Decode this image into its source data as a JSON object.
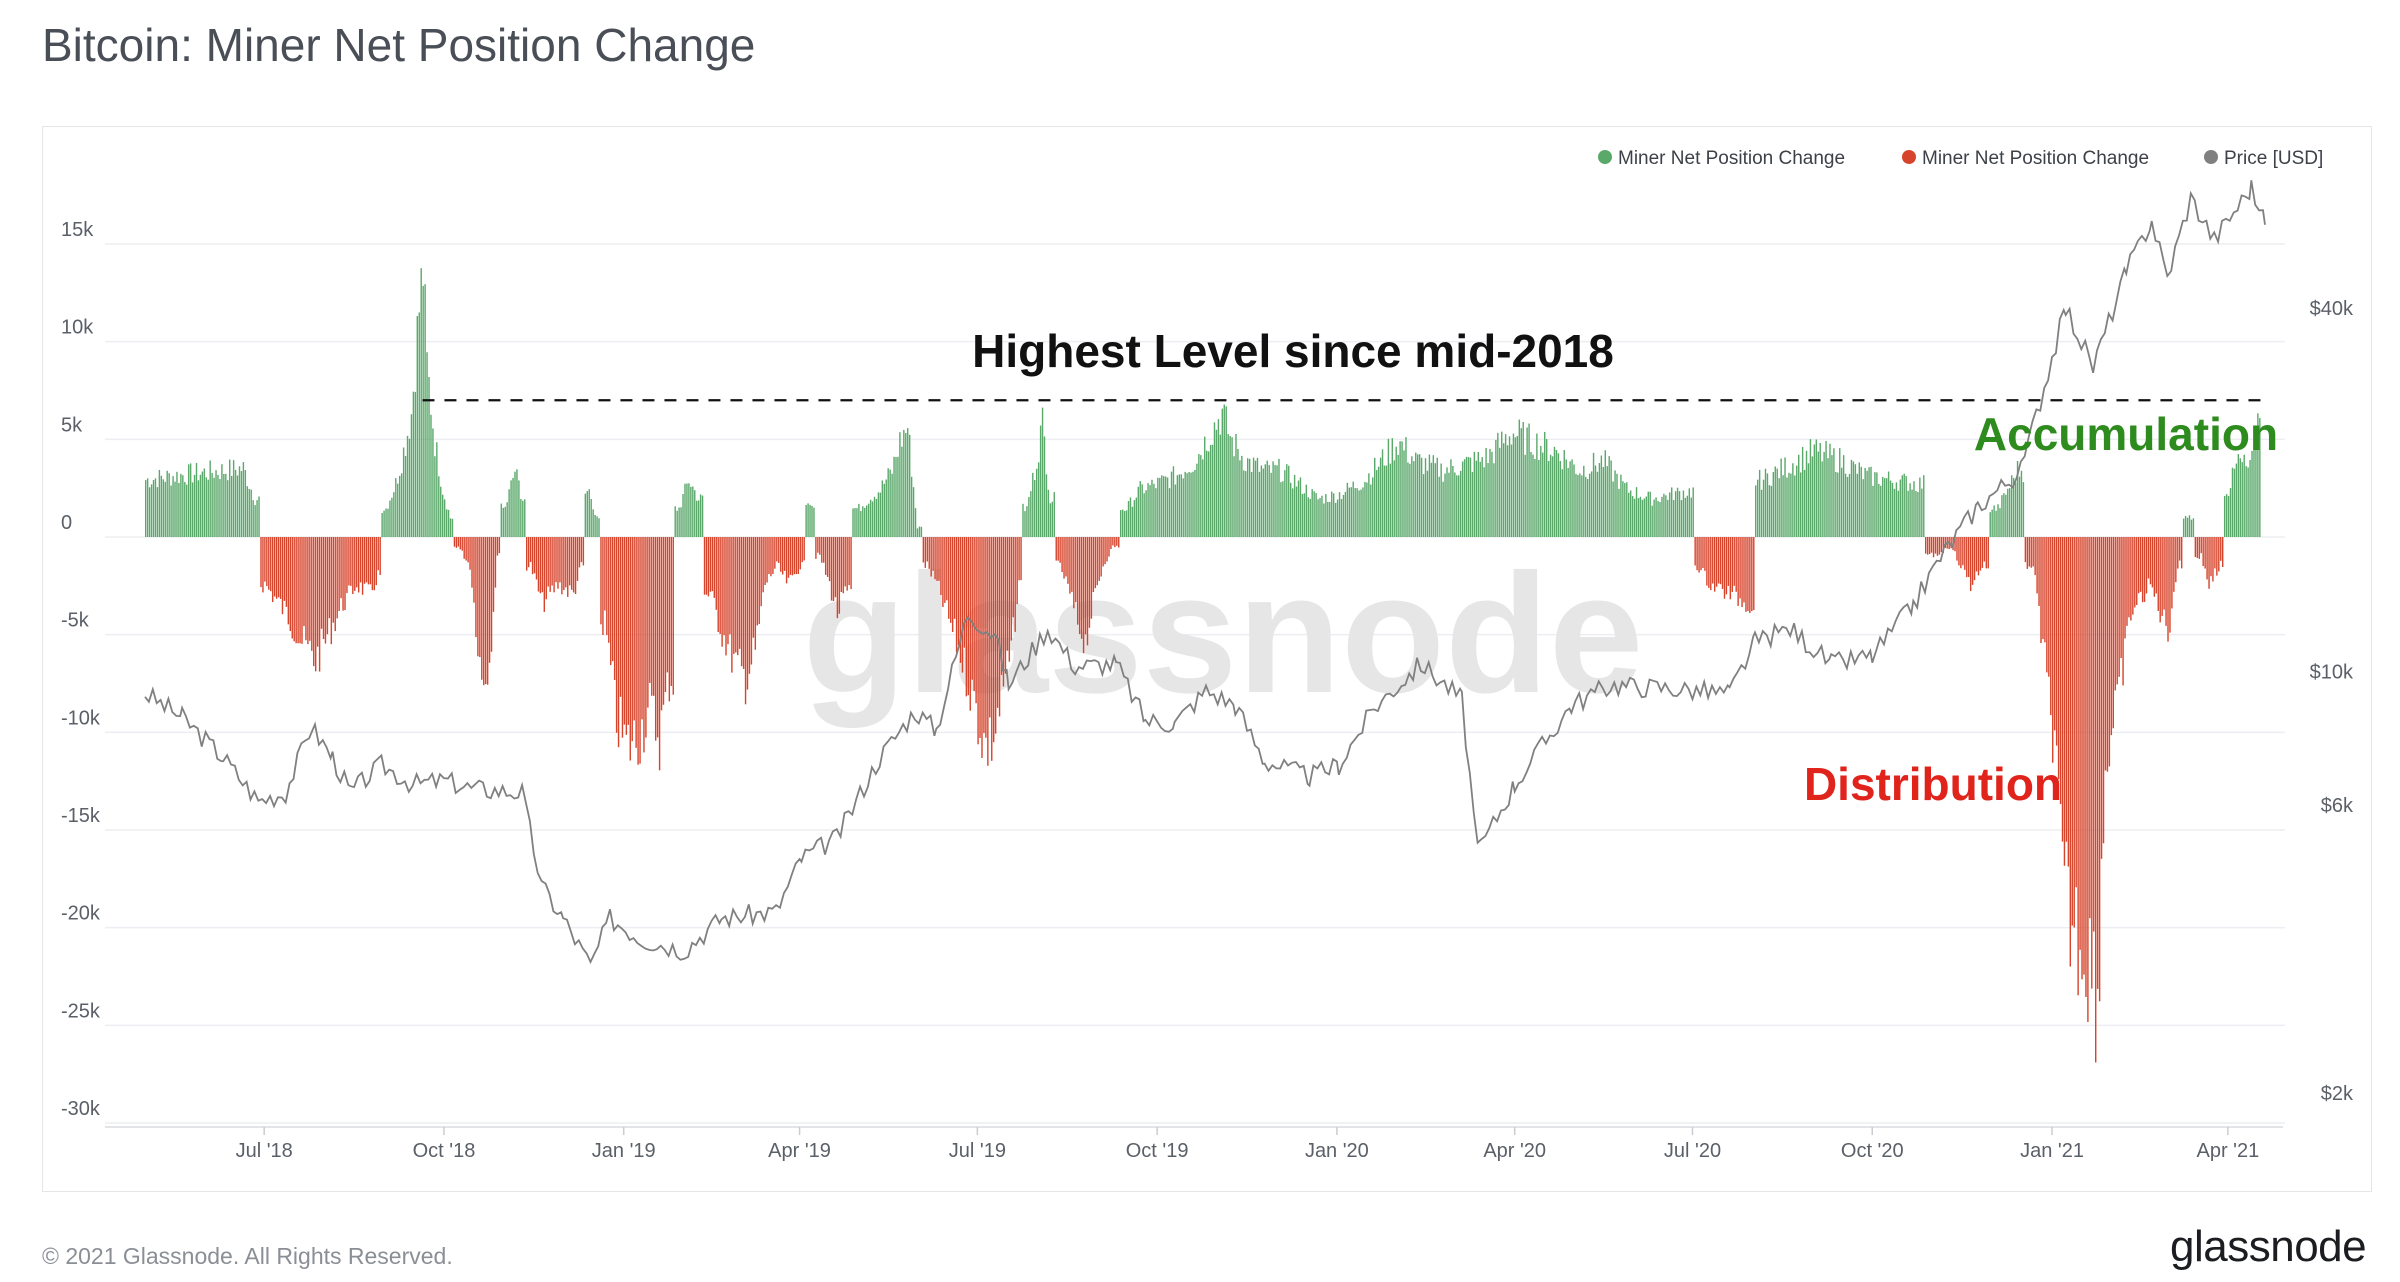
{
  "page": {
    "title": "Bitcoin: Miner Net Position Change",
    "copyright": "© 2021 Glassnode. All Rights Reserved.",
    "brand": "glassnode",
    "watermark": "glassnode"
  },
  "colors": {
    "positive": "#5aa86a",
    "negative": "#d6442c",
    "price": "#808080",
    "accumulation_text": "#2e8b1e",
    "distribution_text": "#e0231b",
    "grid": "#eceef1",
    "axis_text": "#5b6068"
  },
  "chart_data": {
    "type": "bar",
    "title": "Bitcoin: Miner Net Position Change",
    "legend": {
      "position": "top-right",
      "items": [
        {
          "label": "Miner Net Position Change",
          "color": "#5aa86a"
        },
        {
          "label": "Miner Net Position Change",
          "color": "#d6442c"
        },
        {
          "label": "Price [USD]",
          "color": "#808080"
        }
      ]
    },
    "x_axis": {
      "range": [
        "2018-05-01",
        "2021-04-20"
      ],
      "ticks": [
        {
          "date": "2018-07-01",
          "label": "Jul '18"
        },
        {
          "date": "2018-10-01",
          "label": "Oct '18"
        },
        {
          "date": "2019-01-01",
          "label": "Jan '19"
        },
        {
          "date": "2019-04-01",
          "label": "Apr '19"
        },
        {
          "date": "2019-07-01",
          "label": "Jul '19"
        },
        {
          "date": "2019-10-01",
          "label": "Oct '19"
        },
        {
          "date": "2020-01-01",
          "label": "Jan '20"
        },
        {
          "date": "2020-04-01",
          "label": "Apr '20"
        },
        {
          "date": "2020-07-01",
          "label": "Jul '20"
        },
        {
          "date": "2020-10-01",
          "label": "Oct '20"
        },
        {
          "date": "2021-01-01",
          "label": "Jan '21"
        },
        {
          "date": "2021-04-01",
          "label": "Apr '21"
        }
      ]
    },
    "y_left": {
      "range": [
        -30000,
        15000
      ],
      "ticks": [
        {
          "value": 15000,
          "label": "15k"
        },
        {
          "value": 10000,
          "label": "10k"
        },
        {
          "value": 5000,
          "label": "5k"
        },
        {
          "value": 0,
          "label": "0"
        },
        {
          "value": -5000,
          "label": "-5k"
        },
        {
          "value": -10000,
          "label": "-10k"
        },
        {
          "value": -15000,
          "label": "-15k"
        },
        {
          "value": -20000,
          "label": "-20k"
        },
        {
          "value": -25000,
          "label": "-25k"
        },
        {
          "value": -30000,
          "label": "-30k"
        }
      ]
    },
    "y_right": {
      "scale": "log",
      "range": [
        2000,
        64000
      ],
      "ticks": [
        {
          "value": 40000,
          "label": "$40k"
        },
        {
          "value": 10000,
          "label": "$10k"
        },
        {
          "value": 6000,
          "label": "$6k"
        },
        {
          "value": 2000,
          "label": "$2k"
        }
      ]
    },
    "grid": true,
    "series": [
      {
        "name": "Miner Net Position Change",
        "kind": "bar",
        "points": [
          [
            "2018-05-01",
            3000
          ],
          [
            "2018-05-15",
            3200
          ],
          [
            "2018-06-01",
            3400
          ],
          [
            "2018-06-20",
            3600
          ],
          [
            "2018-06-26",
            2000
          ],
          [
            "2018-07-01",
            -2500
          ],
          [
            "2018-07-12",
            -4000
          ],
          [
            "2018-07-20",
            -5500
          ],
          [
            "2018-07-27",
            -6500
          ],
          [
            "2018-08-03",
            -5000
          ],
          [
            "2018-08-10",
            -3500
          ],
          [
            "2018-08-17",
            -2500
          ],
          [
            "2018-08-24",
            -3000
          ],
          [
            "2018-08-28",
            -2000
          ],
          [
            "2018-09-01",
            1500
          ],
          [
            "2018-09-06",
            2800
          ],
          [
            "2018-09-10",
            4500
          ],
          [
            "2018-09-14",
            6500
          ],
          [
            "2018-09-18",
            12000
          ],
          [
            "2018-09-20",
            14000
          ],
          [
            "2018-09-22",
            9000
          ],
          [
            "2018-09-26",
            5000
          ],
          [
            "2018-09-30",
            2500
          ],
          [
            "2018-10-04",
            1000
          ],
          [
            "2018-10-08",
            -500
          ],
          [
            "2018-10-14",
            -1500
          ],
          [
            "2018-10-20",
            -7500
          ],
          [
            "2018-10-24",
            -6500
          ],
          [
            "2018-10-28",
            -1000
          ],
          [
            "2018-11-01",
            1500
          ],
          [
            "2018-11-06",
            3500
          ],
          [
            "2018-11-10",
            2000
          ],
          [
            "2018-11-14",
            -1500
          ],
          [
            "2018-11-20",
            -3500
          ],
          [
            "2018-11-28",
            -2500
          ],
          [
            "2018-12-06",
            -3000
          ],
          [
            "2018-12-10",
            -1500
          ],
          [
            "2018-12-14",
            2500
          ],
          [
            "2018-12-18",
            1000
          ],
          [
            "2018-12-22",
            -4500
          ],
          [
            "2018-12-28",
            -9500
          ],
          [
            "2019-01-02",
            -11000
          ],
          [
            "2019-01-08",
            -10500
          ],
          [
            "2019-01-14",
            -9000
          ],
          [
            "2019-01-19",
            -10500
          ],
          [
            "2019-01-24",
            -7500
          ],
          [
            "2019-01-29",
            1500
          ],
          [
            "2019-02-03",
            3000
          ],
          [
            "2019-02-08",
            2000
          ],
          [
            "2019-02-14",
            -3000
          ],
          [
            "2019-02-20",
            -5000
          ],
          [
            "2019-02-26",
            -6500
          ],
          [
            "2019-03-04",
            -7500
          ],
          [
            "2019-03-09",
            -6000
          ],
          [
            "2019-03-14",
            -2500
          ],
          [
            "2019-03-20",
            -1500
          ],
          [
            "2019-03-26",
            -2500
          ],
          [
            "2019-04-01",
            -1500
          ],
          [
            "2019-04-06",
            1500
          ],
          [
            "2019-04-11",
            -1000
          ],
          [
            "2019-04-16",
            -2500
          ],
          [
            "2019-04-20",
            -4000
          ],
          [
            "2019-04-24",
            -3000
          ],
          [
            "2019-05-01",
            1500
          ],
          [
            "2019-05-06",
            2000
          ],
          [
            "2019-05-12",
            2500
          ],
          [
            "2019-05-18",
            3500
          ],
          [
            "2019-05-22",
            5000
          ],
          [
            "2019-05-26",
            5800
          ],
          [
            "2019-05-31",
            500
          ],
          [
            "2019-06-05",
            -1500
          ],
          [
            "2019-06-10",
            -2500
          ],
          [
            "2019-06-15",
            -4000
          ],
          [
            "2019-06-20",
            -5500
          ],
          [
            "2019-06-26",
            -7500
          ],
          [
            "2019-07-01",
            -9500
          ],
          [
            "2019-07-05",
            -11000
          ],
          [
            "2019-07-09",
            -10500
          ],
          [
            "2019-07-14",
            -8000
          ],
          [
            "2019-07-18",
            -6000
          ],
          [
            "2019-07-22",
            -2500
          ],
          [
            "2019-07-26",
            1500
          ],
          [
            "2019-07-30",
            3500
          ],
          [
            "2019-08-03",
            6000
          ],
          [
            "2019-08-07",
            2000
          ],
          [
            "2019-08-12",
            -1500
          ],
          [
            "2019-08-17",
            -3000
          ],
          [
            "2019-08-21",
            -4500
          ],
          [
            "2019-08-25",
            -5500
          ],
          [
            "2019-08-29",
            -3500
          ],
          [
            "2019-09-03",
            -1500
          ],
          [
            "2019-09-08",
            -500
          ],
          [
            "2019-09-15",
            1500
          ],
          [
            "2019-09-22",
            2500
          ],
          [
            "2019-10-01",
            2800
          ],
          [
            "2019-10-10",
            3200
          ],
          [
            "2019-10-20",
            4000
          ],
          [
            "2019-10-28",
            5500
          ],
          [
            "2019-11-03",
            6500
          ],
          [
            "2019-11-08",
            5000
          ],
          [
            "2019-11-15",
            4000
          ],
          [
            "2019-11-24",
            3500
          ],
          [
            "2019-12-03",
            3500
          ],
          [
            "2019-12-12",
            2800
          ],
          [
            "2019-12-22",
            2000
          ],
          [
            "2020-01-01",
            2200
          ],
          [
            "2020-01-15",
            3000
          ],
          [
            "2020-02-01",
            5000
          ],
          [
            "2020-02-10",
            4000
          ],
          [
            "2020-02-24",
            3500
          ],
          [
            "2020-03-06",
            3800
          ],
          [
            "2020-03-18",
            4200
          ],
          [
            "2020-03-30",
            5500
          ],
          [
            "2020-04-10",
            5000
          ],
          [
            "2020-04-22",
            4500
          ],
          [
            "2020-05-04",
            3500
          ],
          [
            "2020-05-16",
            4000
          ],
          [
            "2020-05-28",
            2500
          ],
          [
            "2020-06-10",
            2000
          ],
          [
            "2020-06-22",
            2300
          ],
          [
            "2020-06-30",
            2400
          ],
          [
            "2020-07-03",
            -1500
          ],
          [
            "2020-07-10",
            -2500
          ],
          [
            "2020-07-20",
            -3000
          ],
          [
            "2020-07-30",
            -3500
          ],
          [
            "2020-08-05",
            3000
          ],
          [
            "2020-08-20",
            3800
          ],
          [
            "2020-09-01",
            4500
          ],
          [
            "2020-09-15",
            4000
          ],
          [
            "2020-09-28",
            3200
          ],
          [
            "2020-10-10",
            3000
          ],
          [
            "2020-10-24",
            2800
          ],
          [
            "2020-11-01",
            -1000
          ],
          [
            "2020-11-10",
            -500
          ],
          [
            "2020-11-20",
            -2500
          ],
          [
            "2020-11-26",
            -1500
          ],
          [
            "2020-12-04",
            1500
          ],
          [
            "2020-12-14",
            3500
          ],
          [
            "2020-12-22",
            -1500
          ],
          [
            "2021-01-02",
            -11000
          ],
          [
            "2021-01-06",
            -18000
          ],
          [
            "2021-01-10",
            -20000
          ],
          [
            "2021-01-15",
            -21000
          ],
          [
            "2021-01-20",
            -22000
          ],
          [
            "2021-01-24",
            -24000
          ],
          [
            "2021-01-28",
            -12000
          ],
          [
            "2021-02-03",
            -9000
          ],
          [
            "2021-02-10",
            -4000
          ],
          [
            "2021-02-20",
            -2500
          ],
          [
            "2021-03-01",
            -5000
          ],
          [
            "2021-03-06",
            -1500
          ],
          [
            "2021-03-12",
            1000
          ],
          [
            "2021-03-18",
            -1000
          ],
          [
            "2021-03-22",
            -2500
          ],
          [
            "2021-03-28",
            -1500
          ],
          [
            "2021-04-01",
            2500
          ],
          [
            "2021-04-06",
            4000
          ],
          [
            "2021-04-12",
            3500
          ],
          [
            "2021-04-18",
            7500
          ]
        ]
      },
      {
        "name": "Price [USD]",
        "kind": "line",
        "axis": "right",
        "points": [
          [
            "2018-05-01",
            9200
          ],
          [
            "2018-05-20",
            8400
          ],
          [
            "2018-06-10",
            7200
          ],
          [
            "2018-06-28",
            6100
          ],
          [
            "2018-07-12",
            6300
          ],
          [
            "2018-07-25",
            8100
          ],
          [
            "2018-08-05",
            7200
          ],
          [
            "2018-08-14",
            6300
          ],
          [
            "2018-08-30",
            7000
          ],
          [
            "2018-09-15",
            6500
          ],
          [
            "2018-10-01",
            6600
          ],
          [
            "2018-10-15",
            6400
          ],
          [
            "2018-11-10",
            6300
          ],
          [
            "2018-11-20",
            4400
          ],
          [
            "2018-12-01",
            3900
          ],
          [
            "2018-12-15",
            3250
          ],
          [
            "2018-12-25",
            3900
          ],
          [
            "2019-01-10",
            3600
          ],
          [
            "2019-02-01",
            3450
          ],
          [
            "2019-02-20",
            3900
          ],
          [
            "2019-03-20",
            4000
          ],
          [
            "2019-04-02",
            4900
          ],
          [
            "2019-04-20",
            5300
          ],
          [
            "2019-05-12",
            7200
          ],
          [
            "2019-05-30",
            8600
          ],
          [
            "2019-06-10",
            8000
          ],
          [
            "2019-06-26",
            12500
          ],
          [
            "2019-07-10",
            11500
          ],
          [
            "2019-07-17",
            9500
          ],
          [
            "2019-08-06",
            11800
          ],
          [
            "2019-08-20",
            10200
          ],
          [
            "2019-09-10",
            10300
          ],
          [
            "2019-09-25",
            8300
          ],
          [
            "2019-10-10",
            8200
          ],
          [
            "2019-10-26",
            9300
          ],
          [
            "2019-11-10",
            8800
          ],
          [
            "2019-11-25",
            7100
          ],
          [
            "2019-12-18",
            6700
          ],
          [
            "2020-01-02",
            7000
          ],
          [
            "2020-01-20",
            8700
          ],
          [
            "2020-02-13",
            10300
          ],
          [
            "2020-03-05",
            9000
          ],
          [
            "2020-03-13",
            5000
          ],
          [
            "2020-04-01",
            6500
          ],
          [
            "2020-04-30",
            8800
          ],
          [
            "2020-05-20",
            9500
          ],
          [
            "2020-06-15",
            9400
          ],
          [
            "2020-07-20",
            9200
          ],
          [
            "2020-08-02",
            11200
          ],
          [
            "2020-08-20",
            11800
          ],
          [
            "2020-09-10",
            10300
          ],
          [
            "2020-10-01",
            10600
          ],
          [
            "2020-10-22",
            12900
          ],
          [
            "2020-11-05",
            15500
          ],
          [
            "2020-11-24",
            18800
          ],
          [
            "2020-12-16",
            21500
          ],
          [
            "2021-01-08",
            40000
          ],
          [
            "2021-01-22",
            32000
          ],
          [
            "2021-02-08",
            46000
          ],
          [
            "2021-02-21",
            56000
          ],
          [
            "2021-03-01",
            45000
          ],
          [
            "2021-03-13",
            61000
          ],
          [
            "2021-03-25",
            52000
          ],
          [
            "2021-04-13",
            63500
          ],
          [
            "2021-04-20",
            55000
          ]
        ]
      }
    ],
    "annotations": [
      {
        "text": "Highest Level since mid-2018",
        "kind": "dashed-line",
        "value": 7000,
        "from": "2018-09-20",
        "to": "2021-04-20"
      },
      {
        "text": "Accumulation"
      },
      {
        "text": "Distribution"
      }
    ]
  }
}
